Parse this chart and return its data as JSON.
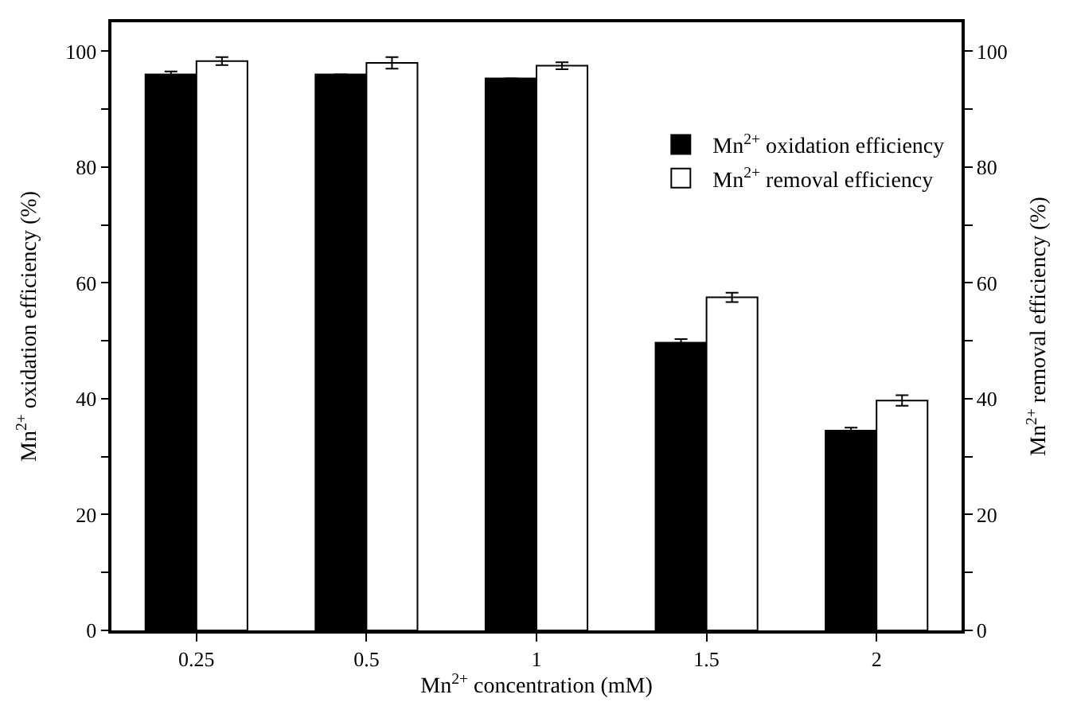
{
  "chart_data": {
    "type": "bar",
    "xlabel": "Mn$^{2+}$ concentration (mM)",
    "ylabel": "Mn$^{2+}$ oxidation efficiency (%)",
    "y2label": "Mn$^{2+}$ removal efficiency (%)",
    "categories": [
      "0.25",
      "0.5",
      "1",
      "1.5",
      "2"
    ],
    "series": [
      {
        "name": "Mn$^{2+}$ oxidation efficiency",
        "color": "#000000",
        "values": [
          96.0,
          96.0,
          95.3,
          49.7,
          34.5
        ],
        "errors": [
          0.5,
          null,
          null,
          0.6,
          0.5
        ]
      },
      {
        "name": "Mn$^{2+}$ removal efficiency",
        "color": "#ffffff",
        "axis": "y2",
        "values": [
          98.3,
          98.0,
          97.5,
          57.5,
          39.7
        ],
        "errors": [
          0.7,
          1.0,
          0.6,
          0.8,
          0.9
        ]
      }
    ],
    "ylim": [
      0,
      105
    ],
    "yticks": [
      0,
      {
        "value": 10,
        "label": null
      },
      20,
      {
        "value": 30,
        "label": null
      },
      40,
      {
        "value": 50,
        "label": null
      },
      60,
      {
        "value": 70,
        "label": null
      },
      80,
      {
        "value": 90,
        "label": null
      },
      100
    ],
    "y2lim": [
      0,
      105
    ],
    "y2ticks": [
      0,
      {
        "value": 10,
        "label": null
      },
      20,
      {
        "value": 30,
        "label": null
      },
      40,
      {
        "value": 50,
        "label": null
      },
      60,
      {
        "value": 70,
        "label": null
      },
      80,
      {
        "value": 90,
        "label": null
      },
      100
    ],
    "legend": "top right"
  }
}
